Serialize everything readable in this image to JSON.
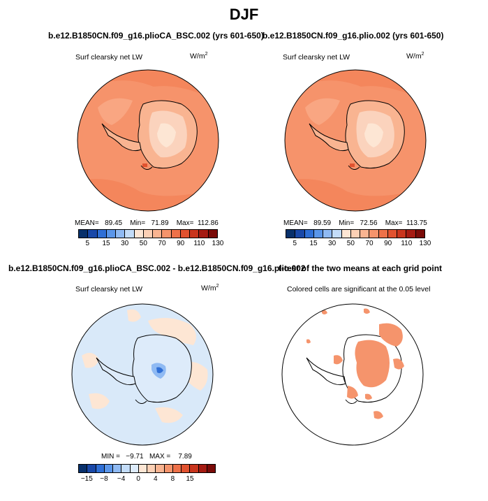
{
  "title": "DJF",
  "panels": [
    {
      "id": "top-left",
      "title": "b.e12.B1850CN.f09_g16.plioCA_BSC.002 (yrs 601-650)",
      "variable": "Surf clearsky net LW",
      "units_base": "W/m",
      "units_exp": "2",
      "stats": {
        "mean_label": "MEAN=",
        "mean": "89.45",
        "min_label": "Min=",
        "min": "71.89",
        "max_label": "Max=",
        "max": "112.86"
      }
    },
    {
      "id": "top-right",
      "title": "b.e12.B1850CN.f09_g16.plio.002 (yrs 601-650)",
      "variable": "Surf clearsky net LW",
      "units_base": "W/m",
      "units_exp": "2",
      "stats": {
        "mean_label": "MEAN=",
        "mean": "89.59",
        "min_label": "Min=",
        "min": "72.56",
        "max_label": "Max=",
        "max": "113.75"
      }
    },
    {
      "id": "bottom-left",
      "title": "b.e12.B1850CN.f09_g16.plioCA_BSC.002 - b.e12.B1850CN.f09_g16.plio.002",
      "variable": "Surf clearsky net LW",
      "units_base": "W/m",
      "units_exp": "2",
      "stats": {
        "min_label": "MIN =",
        "min": "−9.71",
        "max_label": "MAX =",
        "max": "7.89"
      }
    },
    {
      "id": "bottom-right",
      "title": "t-test of the two means at each grid point",
      "note": "Colored cells are significant at the 0.05 level"
    }
  ],
  "colorbar_abs": {
    "colors": [
      "#08306b",
      "#1948a8",
      "#2f6fd6",
      "#5a96ea",
      "#8fbaf3",
      "#c3dcf8",
      "#fde6d4",
      "#fcd0b5",
      "#f9b491",
      "#f5946c",
      "#ee7149",
      "#e1522f",
      "#c9351d",
      "#a51b12",
      "#7a0b08"
    ],
    "tick_labels": [
      "5",
      "15",
      "30",
      "50",
      "70",
      "90",
      "110",
      "130"
    ]
  },
  "colorbar_diff": {
    "colors": [
      "#08306b",
      "#1948a8",
      "#2f6fd6",
      "#5a96ea",
      "#8fbaf3",
      "#c3dcf8",
      "#ddebfa",
      "#fde6d4",
      "#fcd0b5",
      "#f9b491",
      "#f5946c",
      "#ee7149",
      "#e1522f",
      "#c9351d",
      "#a51b12",
      "#7a0b08"
    ],
    "tick_labels": [
      "−15",
      "−8",
      "−4",
      "0",
      "4",
      "8",
      "15"
    ]
  },
  "colors": {
    "ocean_abs": "#f6936b",
    "land_abs_light": "#fbd3bd",
    "ice_abs": "#fcc9ad",
    "diff_bg": "#d9e9f9",
    "diff_pos": "#fde6d4",
    "sig": "#f5946c"
  }
}
